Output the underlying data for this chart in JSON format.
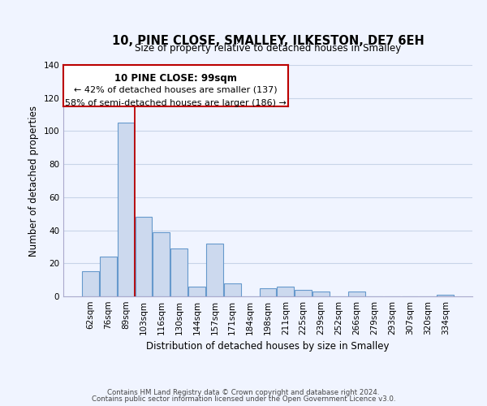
{
  "title": "10, PINE CLOSE, SMALLEY, ILKESTON, DE7 6EH",
  "subtitle": "Size of property relative to detached houses in Smalley",
  "xlabel": "Distribution of detached houses by size in Smalley",
  "ylabel": "Number of detached properties",
  "bar_labels": [
    "62sqm",
    "76sqm",
    "89sqm",
    "103sqm",
    "116sqm",
    "130sqm",
    "144sqm",
    "157sqm",
    "171sqm",
    "184sqm",
    "198sqm",
    "211sqm",
    "225sqm",
    "239sqm",
    "252sqm",
    "266sqm",
    "279sqm",
    "293sqm",
    "307sqm",
    "320sqm",
    "334sqm"
  ],
  "bar_values": [
    15,
    24,
    105,
    48,
    39,
    29,
    6,
    32,
    8,
    0,
    5,
    6,
    4,
    3,
    0,
    3,
    0,
    0,
    0,
    0,
    1
  ],
  "bar_color": "#ccd9ee",
  "bar_edge_color": "#6699cc",
  "ylim": [
    0,
    140
  ],
  "yticks": [
    0,
    20,
    40,
    60,
    80,
    100,
    120,
    140
  ],
  "property_line_x": 2.5,
  "property_line_color": "#bb0000",
  "annotation_title": "10 PINE CLOSE: 99sqm",
  "annotation_line1": "← 42% of detached houses are smaller (137)",
  "annotation_line2": "58% of semi-detached houses are larger (186) →",
  "box_color": "#bb0000",
  "footer_line1": "Contains HM Land Registry data © Crown copyright and database right 2024.",
  "footer_line2": "Contains public sector information licensed under the Open Government Licence v3.0.",
  "background_color": "#f0f4ff",
  "grid_color": "#c8d4e8"
}
